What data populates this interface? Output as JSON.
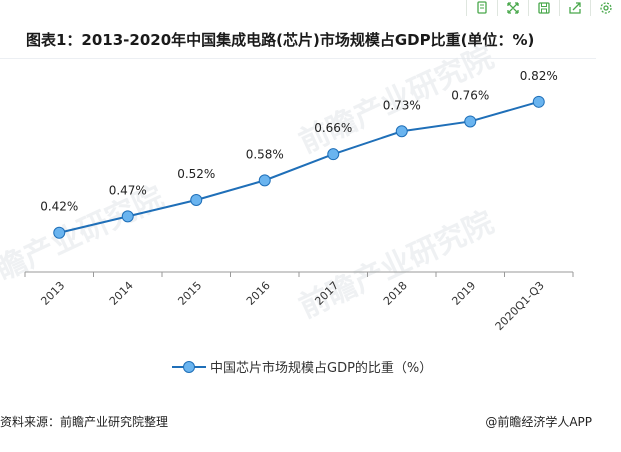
{
  "toolbar": {
    "icons": [
      "copy-icon",
      "expand-icon",
      "save-icon",
      "share-icon",
      "settings-icon"
    ]
  },
  "title": "图表1：2013-2020年中国集成电路(芯片)市场规模占GDP比重(单位：%)",
  "watermark": "前瞻产业研究院",
  "chart_data": {
    "type": "line",
    "categories": [
      "2013",
      "2014",
      "2015",
      "2016",
      "2017",
      "2018",
      "2019",
      "2020Q1-Q3"
    ],
    "series": [
      {
        "name": "中国芯片市场规模占GDP的比重（%）",
        "values": [
          0.42,
          0.47,
          0.52,
          0.58,
          0.66,
          0.73,
          0.76,
          0.82
        ],
        "labels": [
          "0.42%",
          "0.47%",
          "0.52%",
          "0.58%",
          "0.66%",
          "0.73%",
          "0.76%",
          "0.82%"
        ]
      }
    ],
    "ylim": [
      0.3,
      0.85
    ],
    "grid": false,
    "legend": "bottom",
    "colors": {
      "line": "#1f6fb8",
      "marker": "#6ab4ef"
    }
  },
  "legend": {
    "label": "中国芯片市场规模占GDP的比重（%）"
  },
  "footer": {
    "source": "资料来源：前瞻产业研究院整理",
    "brand": "@前瞻经济学人APP"
  }
}
